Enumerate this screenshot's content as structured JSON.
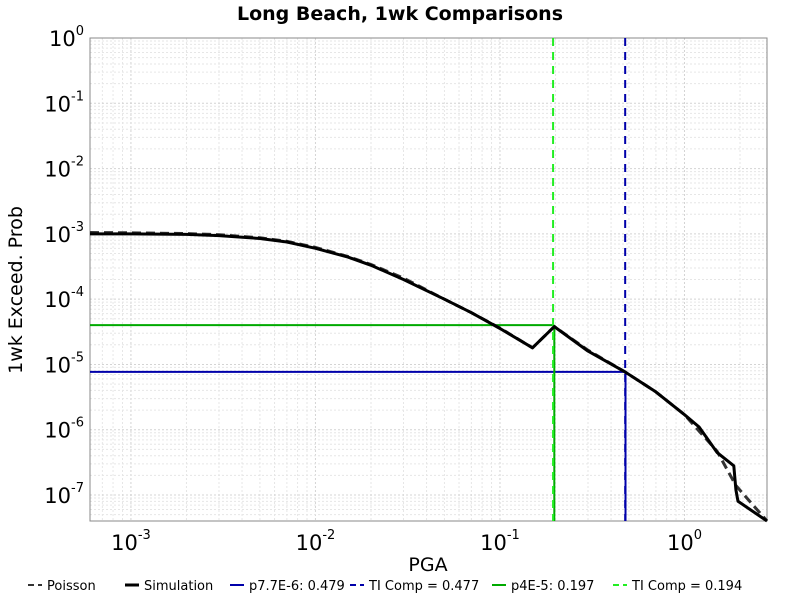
{
  "chart_data": {
    "type": "line",
    "title": "Long Beach, 1wk Comparisons",
    "xlabel": "PGA",
    "ylabel": "1wk Exceed. Prob",
    "x_scale": "log",
    "y_scale": "log",
    "xlim": [
      0.0006,
      2.8
    ],
    "ylim": [
      4e-08,
      1
    ],
    "x_ticks": [
      {
        "value": 0.001,
        "base": "10",
        "exp": "-3"
      },
      {
        "value": 0.01,
        "base": "10",
        "exp": "-2"
      },
      {
        "value": 0.1,
        "base": "10",
        "exp": "-1"
      },
      {
        "value": 1,
        "base": "10",
        "exp": "0"
      }
    ],
    "y_ticks": [
      {
        "value": 1,
        "base": "10",
        "exp": "0"
      },
      {
        "value": 0.1,
        "base": "10",
        "exp": "-1"
      },
      {
        "value": 0.01,
        "base": "10",
        "exp": "-2"
      },
      {
        "value": 0.001,
        "base": "10",
        "exp": "-3"
      },
      {
        "value": 0.0001,
        "base": "10",
        "exp": "-4"
      },
      {
        "value": 1e-05,
        "base": "10",
        "exp": "-5"
      },
      {
        "value": 1e-06,
        "base": "10",
        "exp": "-6"
      },
      {
        "value": 1e-07,
        "base": "10",
        "exp": "-7"
      }
    ],
    "grid": true,
    "legend_position": "bottom",
    "series": [
      {
        "name": "Poisson",
        "color": "#333333",
        "style": "dashed",
        "x": [
          0.0006,
          0.001,
          0.002,
          0.003,
          0.005,
          0.007,
          0.01,
          0.015,
          0.02,
          0.03,
          0.05,
          0.07,
          0.1,
          0.15,
          0.197,
          0.3,
          0.479,
          0.7,
          1.0,
          1.5,
          1.9,
          2.8
        ],
        "y": [
          0.00105,
          0.00104,
          0.00101,
          0.00097,
          0.00087,
          0.00077,
          0.00062,
          0.00045,
          0.00034,
          0.00021,
          0.0001,
          6.2e-05,
          3.6e-05,
          1.8e-05,
          3.8e-05,
          1.65e-05,
          7.6e-06,
          3.8e-06,
          1.7e-06,
          4.7e-07,
          1.4e-07,
          4e-08
        ]
      },
      {
        "name": "Simulation",
        "color": "#000000",
        "style": "solid",
        "x": [
          0.0006,
          0.001,
          0.002,
          0.003,
          0.005,
          0.007,
          0.01,
          0.015,
          0.02,
          0.03,
          0.05,
          0.07,
          0.1,
          0.15,
          0.197,
          0.3,
          0.479,
          0.7,
          1.0,
          1.2,
          1.5,
          1.85,
          1.9,
          1.95,
          2.8
        ],
        "y": [
          0.001,
          0.001,
          0.00098,
          0.00094,
          0.00085,
          0.00075,
          0.0006,
          0.00044,
          0.00033,
          0.0002,
          0.0001,
          6.2e-05,
          3.55e-05,
          1.8e-05,
          3.8e-05,
          1.6e-05,
          7.6e-06,
          3.8e-06,
          1.7e-06,
          1.1e-06,
          4.5e-07,
          2.8e-07,
          1.2e-07,
          8e-08,
          4e-08
        ]
      }
    ],
    "reference_lines": [
      {
        "name": "p7.7E-6: 0.479",
        "color": "#0000aa",
        "style": "solid",
        "x": 0.479,
        "y": 7.7e-06
      },
      {
        "name": "TI Comp = 0.477",
        "color": "#0000aa",
        "style": "dashed",
        "x": 0.477
      },
      {
        "name": "p4E-5: 0.197",
        "color": "#00aa00",
        "style": "solid",
        "x": 0.197,
        "y": 4e-05
      },
      {
        "name": "TI Comp = 0.194",
        "color": "#22ee22",
        "style": "dashed",
        "x": 0.194
      }
    ]
  }
}
